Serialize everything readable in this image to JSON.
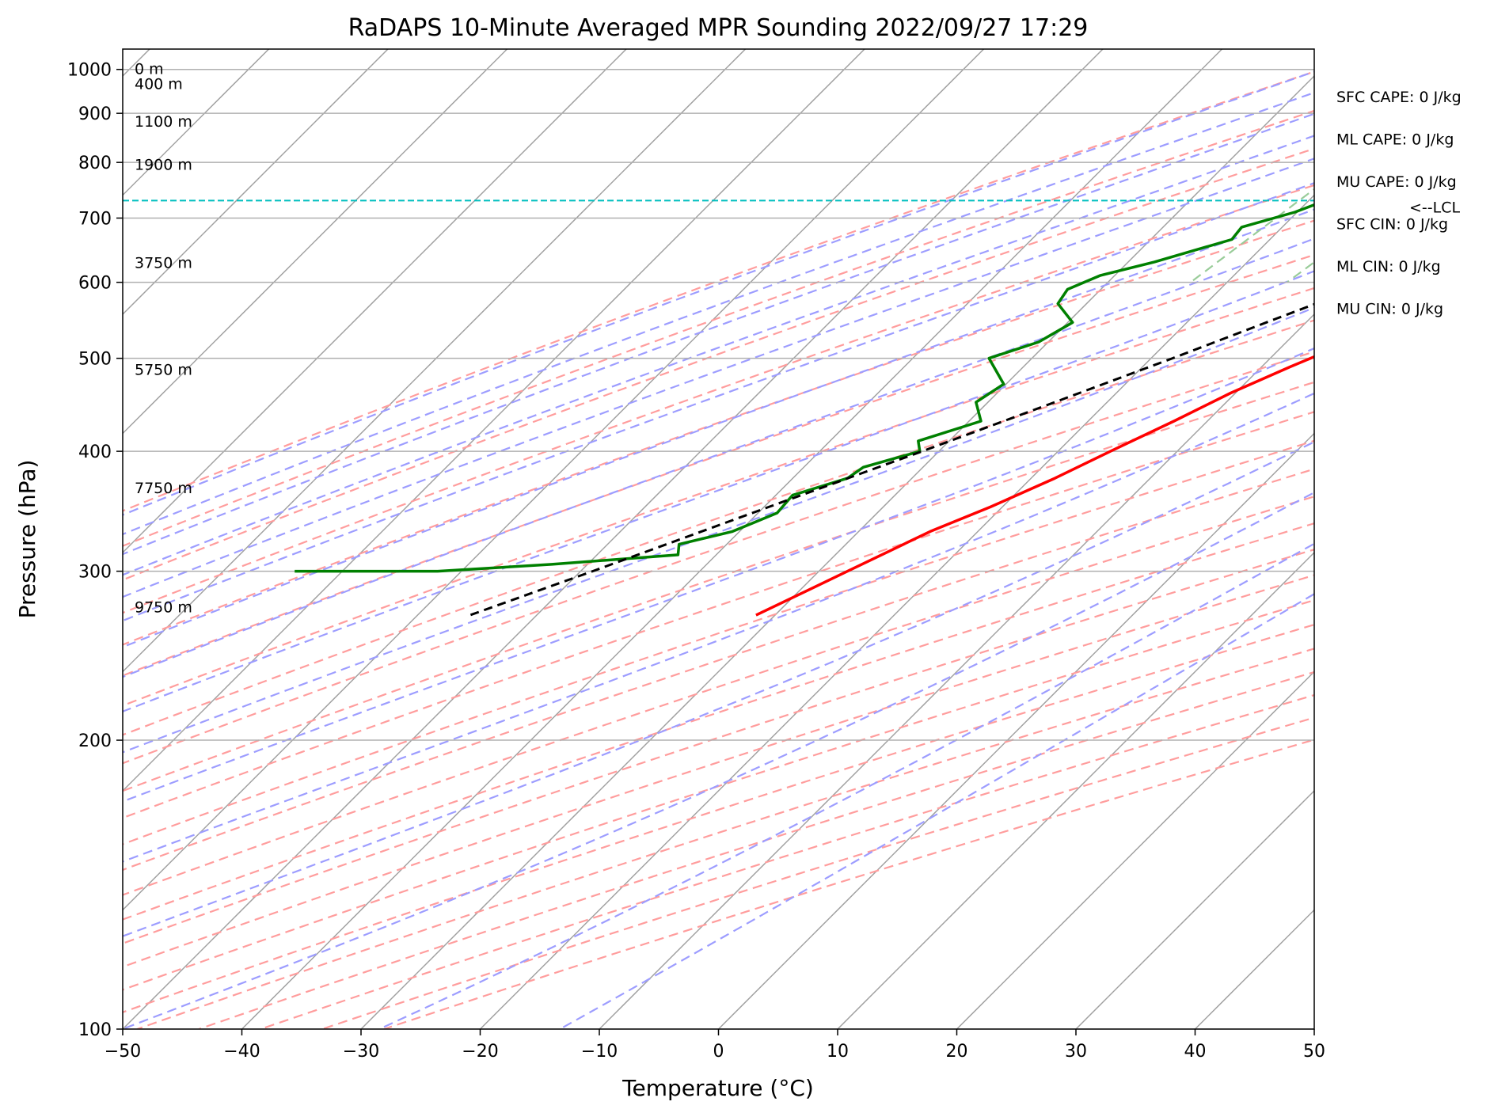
{
  "chart_data": {
    "type": "line",
    "title": "RaDAPS 10-Minute Averaged MPR Sounding 2022/09/27 17:29",
    "xlabel": "Temperature (°C)",
    "ylabel": "Pressure (hPa)",
    "xlim": [
      -50,
      50
    ],
    "ylim": [
      1050,
      100
    ],
    "y_scale": "log",
    "grid": true,
    "x_ticks": [
      "−50",
      "−40",
      "−30",
      "−20",
      "−10",
      "0",
      "10",
      "20",
      "30",
      "40",
      "50"
    ],
    "y_ticks": [
      {
        "p": 100,
        "label": "100"
      },
      {
        "p": 200,
        "label": "200"
      },
      {
        "p": 300,
        "label": "300"
      },
      {
        "p": 400,
        "label": "400"
      },
      {
        "p": 500,
        "label": "500"
      },
      {
        "p": 600,
        "label": "600"
      },
      {
        "p": 700,
        "label": "700"
      },
      {
        "p": 800,
        "label": "800"
      },
      {
        "p": 900,
        "label": "900"
      },
      {
        "p": 1000,
        "label": "1000"
      }
    ],
    "series": [
      {
        "color": "#ff0000",
        "values": [
          {
            "p": 1000,
            "t": 24.0
          },
          {
            "p": 995,
            "t": 21.0
          },
          {
            "p": 985,
            "t": 19.8
          },
          {
            "p": 970,
            "t": 18.5
          },
          {
            "p": 955,
            "t": 17.2
          },
          {
            "p": 935,
            "t": 16.0
          },
          {
            "p": 915,
            "t": 15.1
          },
          {
            "p": 895,
            "t": 14.3
          },
          {
            "p": 875,
            "t": 13.6
          },
          {
            "p": 850,
            "t": 12.6
          },
          {
            "p": 820,
            "t": 11.6
          },
          {
            "p": 800,
            "t": 10.8
          },
          {
            "p": 770,
            "t": 9.6
          },
          {
            "p": 740,
            "t": 8.4
          },
          {
            "p": 700,
            "t": 6.8
          },
          {
            "p": 665,
            "t": 5.0
          },
          {
            "p": 630,
            "t": 2.8
          },
          {
            "p": 600,
            "t": 0.8
          },
          {
            "p": 570,
            "t": -1.4
          },
          {
            "p": 540,
            "t": -3.2
          },
          {
            "p": 515,
            "t": -5.2
          },
          {
            "p": 490,
            "t": -7.6
          },
          {
            "p": 460,
            "t": -10.4
          },
          {
            "p": 430,
            "t": -12.8
          },
          {
            "p": 400,
            "t": -15.6
          },
          {
            "p": 375,
            "t": -18.0
          },
          {
            "p": 350,
            "t": -21.0
          },
          {
            "p": 330,
            "t": -24.0
          },
          {
            "p": 300,
            "t": -27.6
          },
          {
            "p": 270,
            "t": -31.6
          }
        ]
      },
      {
        "color": "#008000",
        "values": [
          {
            "p": 1000,
            "t": 2.8
          },
          {
            "p": 995,
            "t": -0.8
          },
          {
            "p": 985,
            "t": -2.8
          },
          {
            "p": 970,
            "t": -3.8
          },
          {
            "p": 955,
            "t": -3.4
          },
          {
            "p": 945,
            "t": -3.2
          },
          {
            "p": 920,
            "t": 1.6
          },
          {
            "p": 900,
            "t": 5.0
          },
          {
            "p": 885,
            "t": 7.2
          },
          {
            "p": 865,
            "t": 6.8
          },
          {
            "p": 850,
            "t": 5.2
          },
          {
            "p": 835,
            "t": 5.0
          },
          {
            "p": 820,
            "t": 4.2
          },
          {
            "p": 805,
            "t": 3.8
          },
          {
            "p": 770,
            "t": -4.8
          },
          {
            "p": 750,
            "t": -13.8
          },
          {
            "p": 730,
            "t": -18.6
          },
          {
            "p": 710,
            "t": -20.2
          },
          {
            "p": 685,
            "t": -23.4
          },
          {
            "p": 665,
            "t": -23.2
          },
          {
            "p": 630,
            "t": -27.8
          },
          {
            "p": 610,
            "t": -31.2
          },
          {
            "p": 590,
            "t": -32.8
          },
          {
            "p": 570,
            "t": -32.4
          },
          {
            "p": 545,
            "t": -29.6
          },
          {
            "p": 520,
            "t": -30.8
          },
          {
            "p": 500,
            "t": -33.6
          },
          {
            "p": 470,
            "t": -30.2
          },
          {
            "p": 450,
            "t": -31.0
          },
          {
            "p": 430,
            "t": -29.0
          },
          {
            "p": 410,
            "t": -32.6
          },
          {
            "p": 400,
            "t": -31.6
          },
          {
            "p": 385,
            "t": -35.0
          },
          {
            "p": 375,
            "t": -35.4
          },
          {
            "p": 360,
            "t": -38.6
          },
          {
            "p": 345,
            "t": -38.4
          },
          {
            "p": 330,
            "t": -40.6
          },
          {
            "p": 320,
            "t": -44.0
          },
          {
            "p": 312,
            "t": -43.2
          },
          {
            "p": 305,
            "t": -53.0
          },
          {
            "p": 300,
            "t": -62.0
          },
          {
            "p": 300,
            "t": -74.0
          }
        ]
      },
      {
        "color": "#000000",
        "values": [
          {
            "p": 1000,
            "t": 24.0
          },
          {
            "p": 950,
            "t": 19.8
          },
          {
            "p": 900,
            "t": 15.6
          },
          {
            "p": 850,
            "t": 11.6
          },
          {
            "p": 800,
            "t": 7.8
          },
          {
            "p": 760,
            "t": 4.9
          },
          {
            "p": 730,
            "t": 2.9
          },
          {
            "p": 700,
            "t": 0.6
          },
          {
            "p": 650,
            "t": -3.4
          },
          {
            "p": 600,
            "t": -7.8
          },
          {
            "p": 550,
            "t": -12.8
          },
          {
            "p": 500,
            "t": -18.2
          },
          {
            "p": 450,
            "t": -24.4
          },
          {
            "p": 400,
            "t": -31.4
          },
          {
            "p": 350,
            "t": -39.6
          },
          {
            "p": 300,
            "t": -49.0
          },
          {
            "p": 270,
            "t": -55.6
          }
        ]
      }
    ],
    "lcl_pressure": 730,
    "lcl_label": "<--LCL",
    "height_labels": [
      {
        "text": "9750 m",
        "p": 275
      },
      {
        "text": "7750 m",
        "p": 366
      },
      {
        "text": "5750 m",
        "p": 486
      },
      {
        "text": "3750 m",
        "p": 628
      },
      {
        "text": "1900 m",
        "p": 795
      },
      {
        "text": "1100 m",
        "p": 882
      },
      {
        "text": "400 m",
        "p": 965
      },
      {
        "text": "0 m",
        "p": 1000
      }
    ],
    "stats": [
      "SFC CAPE: 0 J/kg",
      "ML CAPE: 0 J/kg",
      "MU CAPE: 0 J/kg",
      "SFC CIN: 0 J/kg",
      "ML CIN: 0 J/kg",
      "MU CIN: 0 J/kg"
    ],
    "reference_line_colors": {
      "isotherm": "#a0a0a0",
      "dry_adiabat": "#ff9d9d",
      "moist_adiabat": "#9d9dff",
      "mixing_ratio": "#99cc99",
      "lcl": "#00bfbf"
    }
  }
}
